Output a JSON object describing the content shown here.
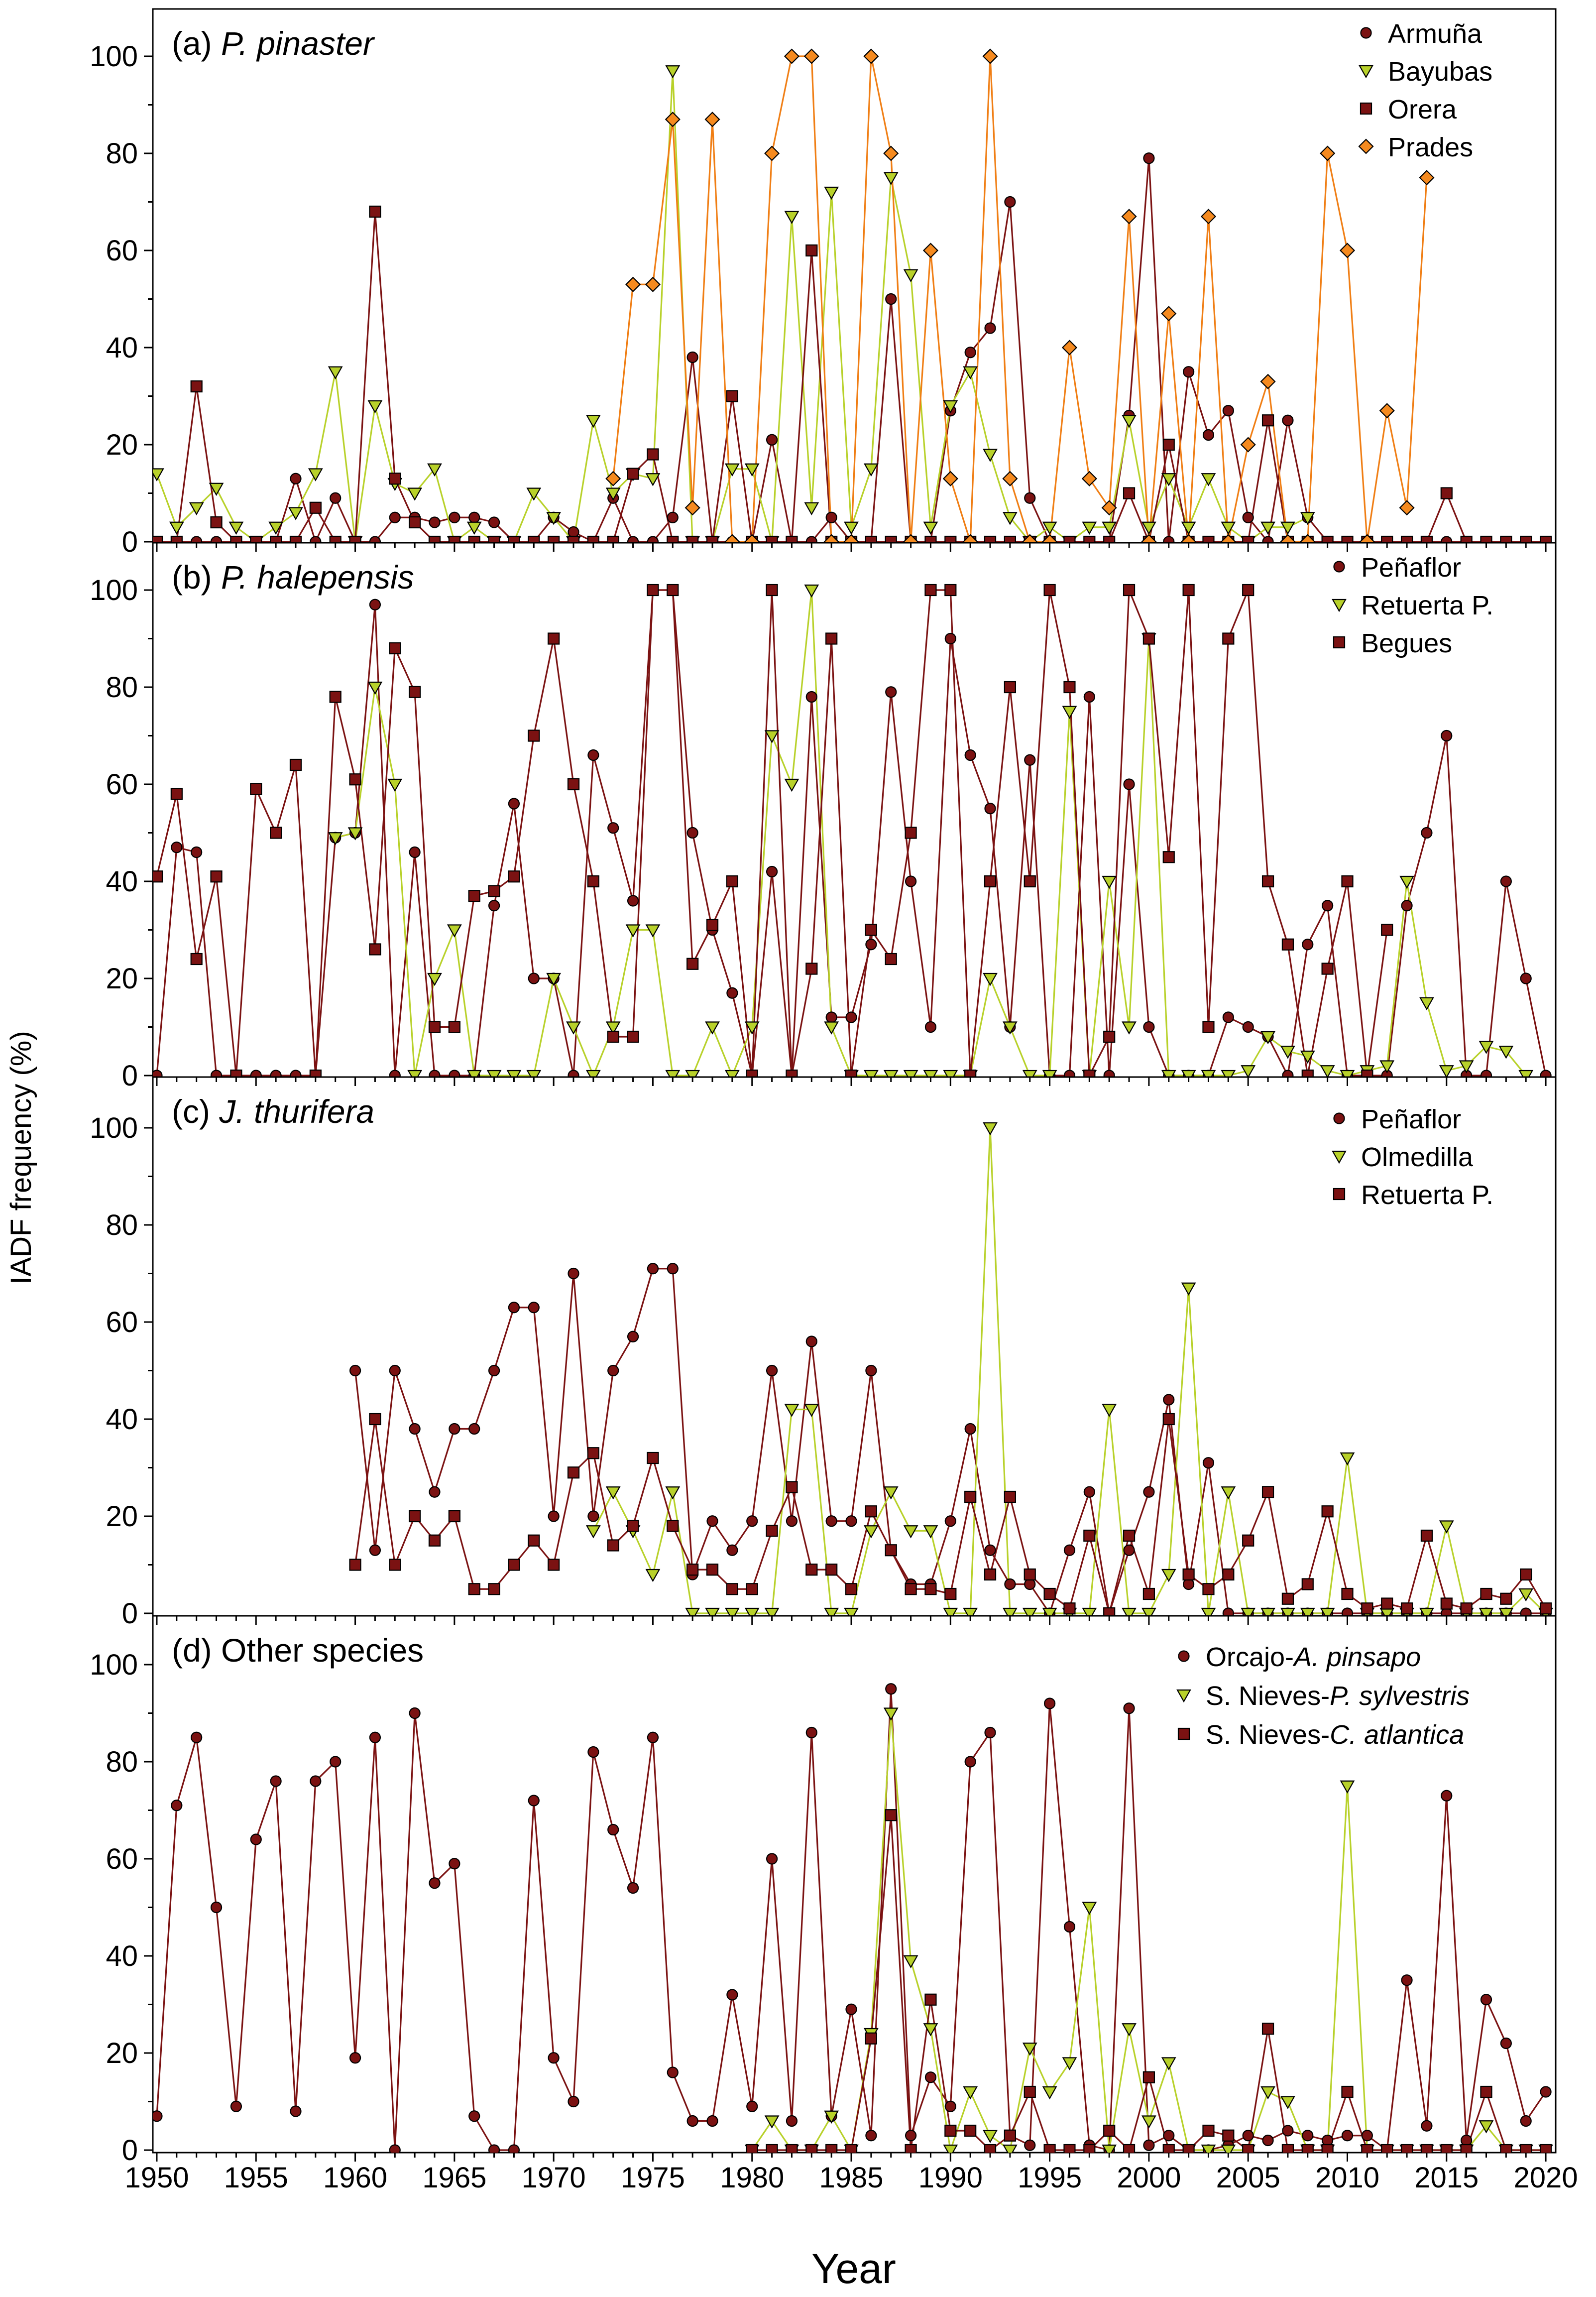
{
  "chart_data": {
    "type": "line",
    "y_axis_label": "IADF frequency (%)",
    "x_axis_label": "Year",
    "xlim": [
      1949.8,
      2020.5
    ],
    "x_ticks": [
      "1950",
      "1955",
      "1960",
      "1965",
      "1970",
      "1975",
      "1980",
      "1985",
      "1990",
      "1995",
      "2000",
      "2005",
      "2010",
      "2015",
      "2020"
    ],
    "y_ticks": [
      "0",
      "20",
      "40",
      "60",
      "80",
      "100"
    ],
    "ylim": [
      -1,
      110
    ],
    "colors": {
      "dark_red": "#7b1212",
      "yellow_green": "#b8d12a",
      "orange": "#f07e14",
      "orange_fill": "#f58a1f",
      "marker_edge": "#000000"
    },
    "panels": [
      {
        "id": "a",
        "prefix": "(a) ",
        "title": "P. pinaster",
        "title_italic": true,
        "series": [
          {
            "name": "Armuña",
            "marker": "circle",
            "color": "dark_red",
            "start": 1950,
            "values": [
              0,
              0,
              0,
              0,
              0,
              0,
              0,
              13,
              0,
              9,
              0,
              0,
              5,
              5,
              4,
              5,
              5,
              4,
              0,
              0,
              5,
              2,
              0,
              9,
              0,
              0,
              5,
              38,
              0,
              0,
              0,
              21,
              0,
              0,
              5,
              0,
              0,
              50,
              0,
              0,
              27,
              39,
              44,
              70,
              9,
              0,
              0,
              0,
              0,
              26,
              79,
              0,
              35,
              22,
              27,
              5,
              0,
              25,
              5,
              0,
              0,
              0,
              0,
              0,
              0,
              0,
              0,
              0,
              0,
              0,
              0
            ]
          },
          {
            "name": "Bayubas",
            "marker": "triangle",
            "color": "yellow_green",
            "start": 1950,
            "values": [
              14,
              3,
              7,
              11,
              3,
              0,
              3,
              6,
              14,
              35,
              0,
              28,
              12,
              10,
              15,
              0,
              3,
              0,
              0,
              10,
              5,
              0,
              25,
              10,
              14,
              13,
              97,
              0,
              0,
              15,
              15,
              0,
              67,
              7,
              72,
              3,
              15,
              75,
              55,
              3,
              28,
              35,
              18,
              5,
              0,
              3,
              0,
              3,
              3,
              25,
              3,
              13,
              3,
              13,
              3,
              0,
              3,
              3,
              5
            ]
          },
          {
            "name": "Orera",
            "marker": "square",
            "color": "dark_red",
            "start": 1950,
            "values": [
              0,
              0,
              32,
              4,
              0,
              0,
              0,
              0,
              7,
              0,
              0,
              68,
              13,
              4,
              0,
              0,
              0,
              0,
              0,
              0,
              0,
              0,
              0,
              0,
              14,
              18,
              0,
              0,
              0,
              30,
              0,
              0,
              0,
              60,
              0,
              0,
              0,
              0,
              0,
              0,
              0,
              0,
              0,
              0,
              0,
              0,
              0,
              0,
              0,
              10,
              0,
              20,
              0,
              0,
              0,
              0,
              25,
              0,
              0,
              0,
              0,
              0,
              0,
              0,
              0,
              10,
              0,
              0,
              0,
              0,
              0
            ]
          },
          {
            "name": "Prades",
            "marker": "diamond",
            "color": "orange",
            "start": 1973,
            "values": [
              13,
              53,
              53,
              87,
              7,
              87,
              0,
              0,
              80,
              100,
              100,
              0,
              0,
              100,
              80,
              0,
              60,
              13,
              0,
              100,
              13,
              0,
              0,
              40,
              13,
              7,
              67,
              0,
              47,
              0,
              67,
              0,
              20,
              33,
              0,
              0,
              80,
              60,
              0,
              27,
              7,
              75
            ]
          }
        ]
      },
      {
        "id": "b",
        "prefix": "(b) ",
        "title": "P. halepensis",
        "title_italic": true,
        "series": [
          {
            "name": "Peñaflor",
            "marker": "circle",
            "color": "dark_red",
            "start": 1950,
            "values": [
              0,
              47,
              46,
              0,
              0,
              0,
              0,
              0,
              0,
              49,
              50,
              97,
              0,
              46,
              0,
              0,
              0,
              35,
              56,
              20,
              20,
              0,
              66,
              51,
              36,
              100,
              100,
              50,
              30,
              17,
              0,
              42,
              0,
              78,
              12,
              12,
              27,
              79,
              40,
              10,
              90,
              66,
              55,
              10,
              65,
              0,
              0,
              78,
              0,
              60,
              10,
              0,
              0,
              0,
              12,
              10,
              8,
              0,
              27,
              35,
              0,
              0,
              0,
              35,
              50,
              70,
              0,
              0,
              40,
              20,
              0
            ]
          },
          {
            "name": "Retuerta P.",
            "marker": "triangle",
            "color": "yellow_green",
            "start": 1959,
            "values": [
              49,
              50,
              80,
              60,
              0,
              20,
              30,
              0,
              0,
              0,
              0,
              20,
              10,
              0,
              10,
              30,
              30,
              0,
              0,
              10,
              0,
              10,
              70,
              60,
              100,
              10,
              0,
              0,
              0,
              0,
              0,
              0,
              0,
              20,
              10,
              0,
              0,
              75,
              0,
              40,
              10,
              90,
              0,
              0,
              0,
              0,
              1,
              8,
              5,
              4,
              1,
              0,
              1,
              2,
              40,
              15,
              1,
              2,
              6,
              5,
              0
            ]
          },
          {
            "name": "Begues",
            "marker": "square",
            "color": "dark_red",
            "start": 1950,
            "values": [
              41,
              58,
              24,
              41,
              0,
              59,
              50,
              64,
              0,
              78,
              61,
              26,
              88,
              79,
              10,
              10,
              37,
              38,
              41,
              70,
              90,
              60,
              40,
              8,
              8,
              100,
              100,
              23,
              31,
              40,
              0,
              100,
              0,
              22,
              90,
              0,
              30,
              24,
              50,
              100,
              100,
              0,
              40,
              80,
              40,
              100,
              80,
              0,
              8,
              100,
              90,
              45,
              100,
              10,
              90,
              100,
              40,
              27,
              0,
              22,
              40,
              0,
              30
            ]
          }
        ]
      },
      {
        "id": "c",
        "prefix": "(c) ",
        "title": "J. thurifera",
        "title_italic": true,
        "series": [
          {
            "name": "Peñaflor",
            "marker": "circle",
            "color": "dark_red",
            "start": 1960,
            "values": [
              50,
              13,
              50,
              38,
              25,
              38,
              38,
              50,
              63,
              63,
              20,
              70,
              20,
              50,
              57,
              71,
              71,
              8,
              19,
              13,
              19,
              50,
              19,
              56,
              19,
              19,
              50,
              13,
              6,
              6,
              19,
              38,
              13,
              6,
              6,
              0,
              13,
              25,
              0,
              13,
              25,
              44,
              6,
              31,
              0,
              0,
              0,
              0,
              0,
              0,
              0,
              0,
              0,
              0,
              0,
              0,
              0,
              0,
              0,
              0,
              0
            ]
          },
          {
            "name": "Olmedilla",
            "marker": "triangle",
            "color": "yellow_green",
            "start": 1972,
            "values": [
              17,
              25,
              17,
              8,
              25,
              0,
              0,
              0,
              0,
              0,
              42,
              42,
              0,
              0,
              17,
              25,
              17,
              17,
              0,
              0,
              100,
              0,
              0,
              0,
              0,
              0,
              42,
              0,
              0,
              8,
              67,
              0,
              25,
              0,
              0,
              0,
              0,
              0,
              32,
              0,
              0,
              0,
              0,
              18,
              0,
              0,
              0,
              4,
              0
            ]
          },
          {
            "name": "Retuerta P.",
            "marker": "square",
            "color": "dark_red",
            "start": 1960,
            "values": [
              10,
              40,
              10,
              20,
              15,
              20,
              5,
              5,
              10,
              15,
              10,
              29,
              33,
              14,
              18,
              32,
              18,
              9,
              9,
              5,
              5,
              17,
              26,
              9,
              9,
              5,
              21,
              13,
              5,
              5,
              4,
              24,
              8,
              24,
              8,
              4,
              1,
              16,
              0,
              16,
              4,
              40,
              8,
              5,
              8,
              15,
              25,
              3,
              6,
              21,
              4,
              1,
              2,
              1,
              16,
              2,
              1,
              4,
              3,
              8,
              1
            ]
          }
        ]
      },
      {
        "id": "d",
        "prefix": "",
        "title": "(d) Other species",
        "title_italic": false,
        "series": [
          {
            "name": "Orcajo-",
            "name_italic": "A. pinsapo",
            "marker": "circle",
            "color": "dark_red",
            "start": 1950,
            "values": [
              7,
              71,
              85,
              50,
              9,
              64,
              76,
              8,
              76,
              80,
              19,
              85,
              0,
              90,
              55,
              59,
              7,
              0,
              0,
              72,
              19,
              10,
              82,
              66,
              54,
              85,
              16,
              6,
              6,
              32,
              9,
              60,
              6,
              86,
              7,
              29,
              3,
              95,
              3,
              15,
              9,
              80,
              86,
              3,
              1,
              92,
              46,
              1,
              0,
              91,
              1,
              3,
              0,
              0,
              1,
              3,
              2,
              4,
              3,
              2,
              3,
              3,
              0,
              35,
              5,
              73,
              2,
              31,
              22,
              6,
              12
            ]
          },
          {
            "name": "S. Nieves-",
            "name_italic": "P. sylvestris",
            "marker": "triangle",
            "color": "yellow_green",
            "start": 1980,
            "values": [
              0,
              6,
              0,
              0,
              7,
              0,
              24,
              90,
              39,
              25,
              0,
              12,
              3,
              0,
              21,
              12,
              18,
              50,
              0,
              25,
              6,
              18,
              0,
              0,
              0,
              0,
              12,
              10,
              0,
              0,
              75,
              0,
              0,
              0,
              0,
              0,
              0,
              5,
              0,
              0,
              0
            ]
          },
          {
            "name": "S. Nieves-",
            "name_italic": "C. atlantica",
            "marker": "square",
            "color": "dark_red",
            "start": 1980,
            "values": [
              0,
              0,
              0,
              0,
              0,
              0,
              23,
              69,
              0,
              31,
              4,
              4,
              0,
              3,
              12,
              0,
              0,
              0,
              4,
              0,
              15,
              0,
              0,
              4,
              3,
              0,
              25,
              0,
              0,
              0,
              12,
              0,
              0,
              0,
              0,
              0,
              0,
              12,
              0,
              0,
              0
            ]
          }
        ]
      }
    ]
  }
}
